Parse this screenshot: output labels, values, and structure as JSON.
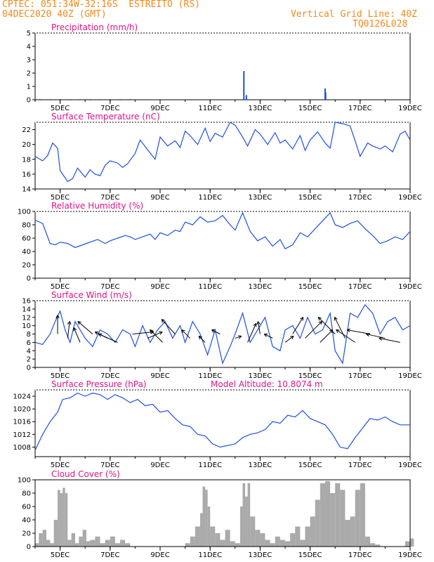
{
  "header": {
    "source": "CPTEC:",
    "location": "051:34W-32:16S  ESTREITO (RS)",
    "datetime": "04DEC2020 40Z (GMT)",
    "grid_note": "Vertical Grid Line: 40Z",
    "code": "TQ0126L028"
  },
  "colors": {
    "header_text": "#f08a1c",
    "title_text": "#e0148a",
    "line": "#1f4fe0",
    "bar": "#1f4fe0",
    "arrow": "#000000",
    "cloud_fill": "#aaaaaa",
    "axis": "#000000"
  },
  "x_ticks": [
    "5DEC",
    "7DEC",
    "9DEC",
    "11DEC",
    "13DEC",
    "15DEC",
    "17DEC",
    "19DEC"
  ],
  "chart_data": [
    {
      "id": "precip",
      "type": "bar",
      "title": "Precipitation (mm/h)",
      "xlim": [
        4.0,
        19.0
      ],
      "ylim": [
        0,
        5
      ],
      "yticks": [
        0,
        1,
        2,
        3,
        4,
        5
      ],
      "x": [
        4.2,
        4.6,
        5.0,
        5.4,
        5.8,
        6.2,
        6.6,
        7.0,
        7.4,
        7.8,
        12.35,
        12.45,
        15.6,
        15.62
      ],
      "values": [
        0.05,
        0.05,
        0.05,
        0.05,
        0.05,
        0.05,
        0.05,
        0.05,
        0.05,
        0.05,
        2.15,
        0.35,
        0.85,
        0.55
      ]
    },
    {
      "id": "temperature",
      "type": "line",
      "title": "Surface Temperature (nC)",
      "xlim": [
        4.0,
        19.0
      ],
      "ylim": [
        14,
        23
      ],
      "yticks": [
        14,
        16,
        18,
        20,
        22
      ],
      "x": [
        4.0,
        4.3,
        4.5,
        4.7,
        4.9,
        5.0,
        5.3,
        5.5,
        5.7,
        6.0,
        6.2,
        6.4,
        6.6,
        6.8,
        7.0,
        7.3,
        7.5,
        7.7,
        8.0,
        8.2,
        8.5,
        8.8,
        9.0,
        9.3,
        9.6,
        9.8,
        10.0,
        10.2,
        10.5,
        10.8,
        11.0,
        11.2,
        11.5,
        11.8,
        12.0,
        12.3,
        12.5,
        12.8,
        13.0,
        13.3,
        13.6,
        13.8,
        14.0,
        14.3,
        14.6,
        14.8,
        15.0,
        15.3,
        15.6,
        15.8,
        16.0,
        16.3,
        16.6,
        16.8,
        17.0,
        17.3,
        17.5,
        17.8,
        18.0,
        18.3,
        18.6,
        18.8,
        19.0
      ],
      "values": [
        18.4,
        17.8,
        18.5,
        20.2,
        19.5,
        16.5,
        15.0,
        15.4,
        16.8,
        15.6,
        16.6,
        16.0,
        15.8,
        17.2,
        17.8,
        17.5,
        16.9,
        17.4,
        18.8,
        20.6,
        19.3,
        18.0,
        21.0,
        19.8,
        20.5,
        19.6,
        21.8,
        21.2,
        20.0,
        22.2,
        20.4,
        21.5,
        21.0,
        23.0,
        22.6,
        21.0,
        19.8,
        22.0,
        21.4,
        20.0,
        21.6,
        20.2,
        20.6,
        19.4,
        21.2,
        19.2,
        20.6,
        21.7,
        20.2,
        19.5,
        23.0,
        22.8,
        22.5,
        20.5,
        18.4,
        20.2,
        19.8,
        19.4,
        19.8,
        19.0,
        21.4,
        21.8,
        20.6
      ]
    },
    {
      "id": "humidity",
      "type": "line",
      "title": "Relative Humidity (%)",
      "xlim": [
        4.0,
        19.0
      ],
      "ylim": [
        0,
        100
      ],
      "yticks": [
        0,
        20,
        40,
        60,
        80,
        100
      ],
      "x": [
        4.0,
        4.3,
        4.6,
        4.8,
        5.0,
        5.3,
        5.6,
        5.9,
        6.2,
        6.5,
        6.8,
        7.0,
        7.3,
        7.6,
        7.8,
        8.0,
        8.3,
        8.6,
        8.8,
        9.0,
        9.3,
        9.6,
        9.8,
        10.0,
        10.3,
        10.6,
        10.9,
        11.2,
        11.5,
        11.8,
        12.0,
        12.3,
        12.6,
        12.9,
        13.2,
        13.5,
        13.8,
        14.0,
        14.3,
        14.6,
        14.9,
        15.2,
        15.5,
        15.8,
        16.0,
        16.3,
        16.6,
        16.9,
        17.2,
        17.5,
        17.8,
        18.1,
        18.4,
        18.7,
        19.0
      ],
      "values": [
        87,
        82,
        52,
        50,
        54,
        52,
        46,
        50,
        54,
        58,
        52,
        56,
        60,
        64,
        62,
        58,
        62,
        66,
        58,
        68,
        64,
        72,
        70,
        84,
        80,
        92,
        84,
        86,
        94,
        80,
        72,
        98,
        70,
        56,
        62,
        48,
        58,
        44,
        50,
        68,
        62,
        74,
        86,
        98,
        80,
        76,
        82,
        86,
        74,
        64,
        52,
        56,
        62,
        58,
        70
      ]
    },
    {
      "id": "wind",
      "type": "line",
      "title": "Surface Wind (m/s)",
      "xlim": [
        4.0,
        19.0
      ],
      "ylim": [
        0,
        16
      ],
      "yticks": [
        0,
        2,
        4,
        6,
        8,
        10,
        12,
        14,
        16
      ],
      "x": [
        4.0,
        4.3,
        4.6,
        4.8,
        5.0,
        5.2,
        5.4,
        5.6,
        5.8,
        6.0,
        6.3,
        6.6,
        6.9,
        7.2,
        7.5,
        7.8,
        8.0,
        8.3,
        8.6,
        8.9,
        9.2,
        9.5,
        9.8,
        10.0,
        10.3,
        10.6,
        10.9,
        11.2,
        11.5,
        11.8,
        12.0,
        12.3,
        12.6,
        12.9,
        13.2,
        13.5,
        13.8,
        14.0,
        14.3,
        14.6,
        14.9,
        15.2,
        15.5,
        15.8,
        16.0,
        16.3,
        16.6,
        16.9,
        17.2,
        17.5,
        17.8,
        18.1,
        18.4,
        18.7,
        19.0
      ],
      "values": [
        6,
        5.5,
        8,
        11,
        13.5,
        9,
        6,
        11,
        9,
        7,
        5,
        9,
        8,
        6,
        9,
        8,
        5,
        10,
        6,
        9,
        11,
        7,
        10,
        6,
        11,
        8,
        3,
        9,
        1,
        5,
        8,
        13,
        6,
        9,
        12,
        5,
        4,
        9,
        10,
        7,
        12,
        8,
        9,
        13,
        4,
        1,
        13,
        12,
        15,
        13,
        8,
        11,
        12,
        9,
        10
      ]
    },
    {
      "id": "wind_vectors",
      "type": "scatter",
      "title": "",
      "note": "wind direction arrows; u/v components in m/s",
      "x": [
        4.9,
        5.3,
        5.8,
        6.3,
        6.9,
        7.3,
        7.9,
        8.5,
        9.1,
        9.6,
        10.2,
        10.8,
        11.4,
        12.0,
        12.5,
        13.0,
        13.5,
        14.0,
        14.3,
        14.8,
        15.4,
        16.0,
        16.4,
        16.8,
        17.4,
        18.0,
        18.6
      ],
      "u": [
        0,
        0.5,
        -1.5,
        -3.5,
        -3.0,
        -4.5,
        5.0,
        3.5,
        -3.0,
        -3.2,
        -2.0,
        -1.5,
        -2.0,
        1.5,
        2.0,
        -0.5,
        -2.0,
        2.0,
        2.5,
        4.0,
        3.0,
        -4.0,
        -2.5,
        -4.5,
        -5.5,
        -4.5,
        -5.0
      ],
      "v": [
        4.5,
        4.0,
        3.5,
        3.0,
        1.5,
        2.0,
        0.5,
        1.5,
        3.0,
        3.5,
        2.0,
        1.5,
        1.0,
        0.5,
        4.5,
        3.0,
        1.0,
        1.5,
        4.0,
        4.0,
        3.0,
        4.0,
        5.0,
        3.0,
        1.0,
        1.0,
        1.0
      ]
    },
    {
      "id": "pressure",
      "type": "line",
      "title": "Surface Pressure (hPa)",
      "annotation": "Model Altitude: 10.8074 m",
      "xlim": [
        4.0,
        19.0
      ],
      "ylim": [
        1005,
        1026
      ],
      "yticks": [
        1008,
        1012,
        1016,
        1020,
        1024
      ],
      "x": [
        4.0,
        4.3,
        4.6,
        4.9,
        5.1,
        5.4,
        5.7,
        6.0,
        6.3,
        6.6,
        6.9,
        7.2,
        7.5,
        7.8,
        8.1,
        8.4,
        8.7,
        9.0,
        9.3,
        9.6,
        9.9,
        10.2,
        10.5,
        10.8,
        11.1,
        11.4,
        11.7,
        12.0,
        12.3,
        12.6,
        12.9,
        13.2,
        13.5,
        13.8,
        14.1,
        14.4,
        14.7,
        15.0,
        15.3,
        15.6,
        15.9,
        16.2,
        16.5,
        16.8,
        17.1,
        17.4,
        17.7,
        18.0,
        18.3,
        18.6,
        19.0
      ],
      "values": [
        1007,
        1012,
        1016,
        1019,
        1023,
        1023.5,
        1025,
        1024,
        1025,
        1024.5,
        1023,
        1024.5,
        1023.5,
        1022,
        1023,
        1021,
        1021.5,
        1019,
        1019.5,
        1017,
        1015,
        1014.5,
        1012,
        1011.5,
        1009,
        1008,
        1008.5,
        1009,
        1011,
        1012,
        1012.5,
        1013.5,
        1016,
        1015.5,
        1018,
        1017.5,
        1019.5,
        1017,
        1016,
        1015,
        1012,
        1008,
        1007.5,
        1011,
        1014,
        1017,
        1016.5,
        1017.5,
        1016,
        1015,
        1015
      ]
    },
    {
      "id": "cloud",
      "type": "area",
      "title": "Cloud Cover (%)",
      "xlim": [
        4.0,
        19.0
      ],
      "ylim": [
        0,
        100
      ],
      "yticks": [
        0,
        20,
        40,
        60,
        80,
        100
      ],
      "x": [
        4.0,
        4.15,
        4.3,
        4.45,
        4.6,
        4.75,
        4.9,
        5.0,
        5.1,
        5.2,
        5.3,
        5.45,
        5.6,
        5.75,
        5.9,
        6.05,
        6.2,
        6.4,
        6.6,
        6.8,
        7.0,
        7.2,
        7.4,
        7.6,
        7.8,
        8.0,
        8.2,
        8.4,
        8.6,
        8.8,
        9.0,
        9.2,
        9.4,
        9.6,
        9.8,
        10.0,
        10.2,
        10.4,
        10.6,
        10.7,
        10.8,
        10.9,
        11.0,
        11.2,
        11.4,
        11.6,
        11.8,
        12.0,
        12.2,
        12.3,
        12.4,
        12.5,
        12.6,
        12.8,
        13.0,
        13.2,
        13.4,
        13.6,
        13.8,
        14.0,
        14.2,
        14.4,
        14.6,
        14.8,
        15.0,
        15.2,
        15.4,
        15.6,
        15.8,
        16.0,
        16.2,
        16.4,
        16.6,
        16.8,
        17.0,
        17.2,
        17.4,
        17.6,
        17.8,
        18.0,
        18.2,
        18.4,
        18.6,
        18.8,
        19.0
      ],
      "values": [
        5,
        20,
        25,
        10,
        5,
        40,
        85,
        80,
        88,
        80,
        10,
        20,
        5,
        15,
        25,
        8,
        10,
        15,
        5,
        10,
        15,
        5,
        10,
        5,
        0,
        0,
        0,
        0,
        0,
        0,
        0,
        0,
        0,
        0,
        0,
        5,
        15,
        30,
        50,
        90,
        85,
        60,
        30,
        20,
        10,
        25,
        8,
        5,
        60,
        95,
        75,
        95,
        45,
        25,
        20,
        10,
        5,
        15,
        10,
        8,
        20,
        30,
        10,
        30,
        45,
        70,
        95,
        98,
        80,
        95,
        85,
        40,
        45,
        85,
        95,
        15,
        5,
        3,
        0,
        0,
        0,
        0,
        0,
        8,
        12
      ]
    }
  ]
}
